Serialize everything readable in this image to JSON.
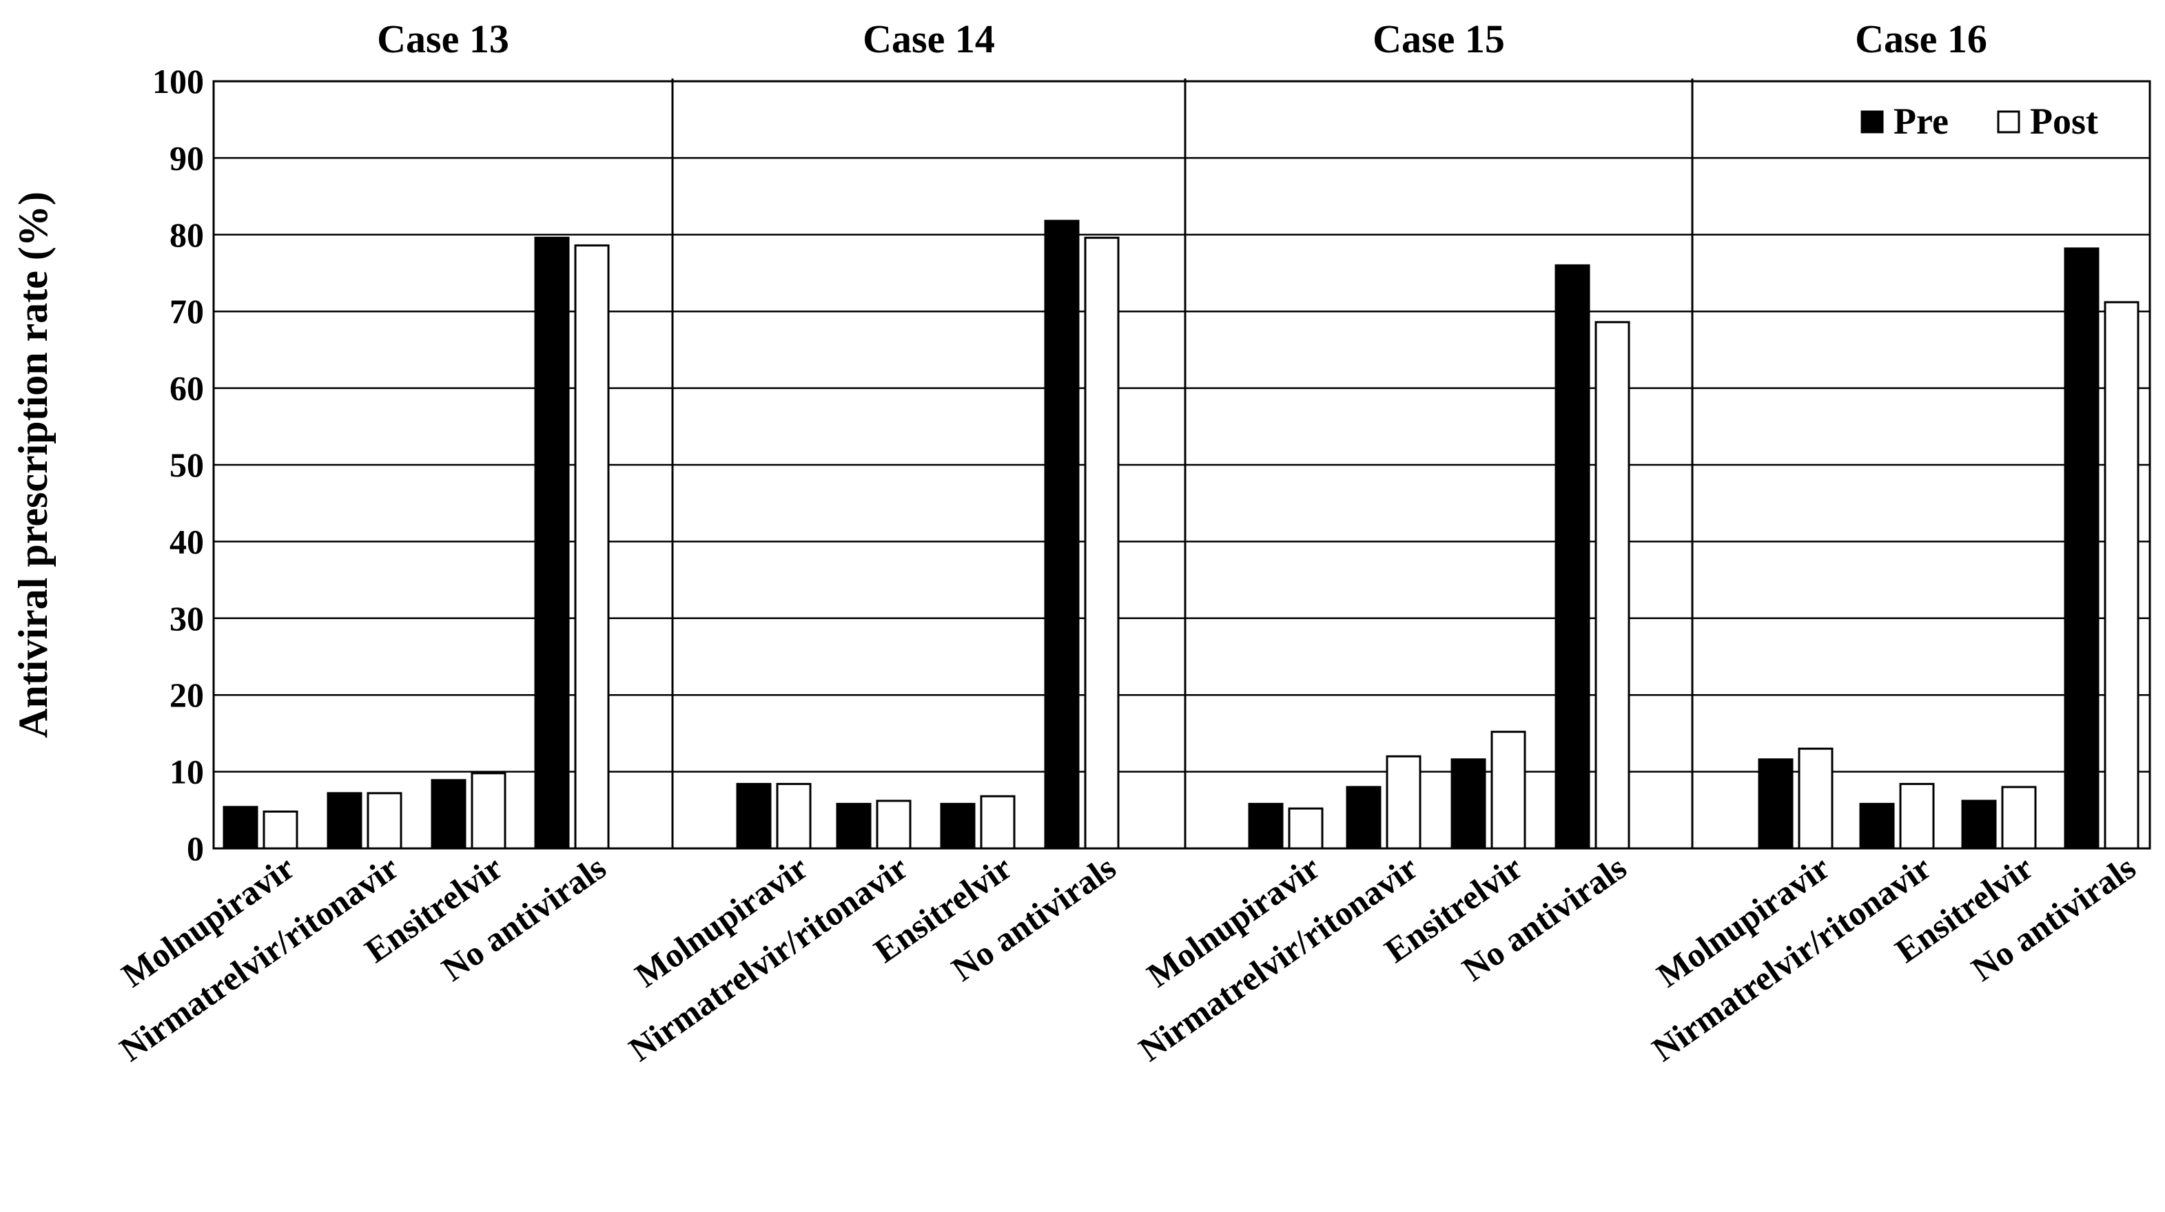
{
  "chart_data": {
    "type": "bar",
    "ylabel": "Antiviral prescription rate (%)",
    "ylim": [
      0,
      100
    ],
    "yticks": [
      "0",
      "10",
      "20",
      "30",
      "40",
      "50",
      "60",
      "70",
      "80",
      "90",
      "100"
    ],
    "grid": true,
    "legend": {
      "placement": "top-right",
      "entries": [
        {
          "name": "Pre",
          "color": "#000000"
        },
        {
          "name": "Post",
          "color": "#ffffff"
        }
      ]
    },
    "panels": [
      {
        "title": "Case 13",
        "categories": [
          "Molnupiravir",
          "Nirmatrelvir/ritonavir",
          "Ensitrelvir",
          "No antivirals"
        ],
        "series": [
          {
            "name": "Pre",
            "values": [
              5.4,
              7.2,
              8.9,
              79.6
            ]
          },
          {
            "name": "Post",
            "values": [
              4.8,
              7.2,
              9.8,
              78.6
            ]
          }
        ]
      },
      {
        "title": "Case 14",
        "categories": [
          "Molnupiravir",
          "Nirmatrelvir/ritonavir",
          "Ensitrelvir",
          "No antivirals"
        ],
        "series": [
          {
            "name": "Pre",
            "values": [
              8.4,
              5.8,
              5.8,
              81.8
            ]
          },
          {
            "name": "Post",
            "values": [
              8.4,
              6.2,
              6.8,
              79.6
            ]
          }
        ]
      },
      {
        "title": "Case 15",
        "categories": [
          "Molnupiravir",
          "Nirmatrelvir/ritonavir",
          "Ensitrelvir",
          "No antivirals"
        ],
        "series": [
          {
            "name": "Pre",
            "values": [
              5.8,
              8.0,
              11.6,
              76.0
            ]
          },
          {
            "name": "Post",
            "values": [
              5.2,
              12.0,
              15.2,
              68.6
            ]
          }
        ]
      },
      {
        "title": "Case 16",
        "categories": [
          "Molnupiravir",
          "Nirmatrelvir/ritonavir",
          "Ensitrelvir",
          "No antivirals"
        ],
        "series": [
          {
            "name": "Pre",
            "values": [
              11.6,
              5.8,
              6.2,
              78.2
            ]
          },
          {
            "name": "Post",
            "values": [
              13.0,
              8.4,
              8.0,
              71.2
            ]
          }
        ]
      }
    ]
  }
}
